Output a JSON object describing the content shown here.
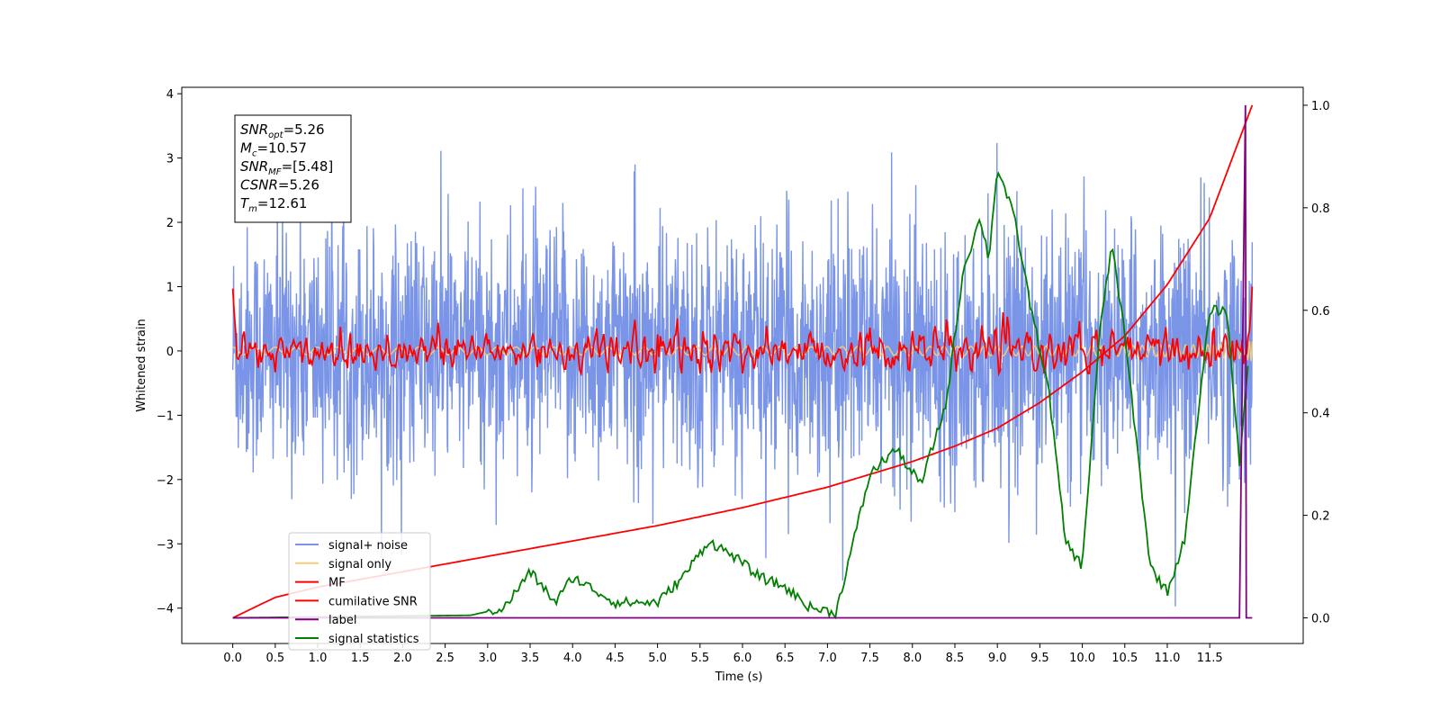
{
  "chart_data": {
    "type": "line",
    "xlabel": "Time (s)",
    "ylabel": "Whitened strain",
    "xlim": [
      -0.6,
      12.6
    ],
    "ylim": [
      -4.55,
      4.1
    ],
    "y2lim": [
      -0.05,
      1.035
    ],
    "x_ticks": [
      "0.0",
      "0.5",
      "1.0",
      "1.5",
      "2.0",
      "2.5",
      "3.0",
      "3.5",
      "4.0",
      "4.5",
      "5.0",
      "5.5",
      "6.0",
      "6.5",
      "7.0",
      "7.5",
      "8.0",
      "8.5",
      "9.0",
      "9.5",
      "10.0",
      "10.5",
      "11.0",
      "11.5"
    ],
    "y_ticks": [
      "4",
      "3",
      "2",
      "1",
      "0",
      "−1",
      "−2",
      "−3",
      "−4"
    ],
    "y2_ticks": [
      "1.0",
      "0.8",
      "0.6",
      "0.4",
      "0.2",
      "0.0"
    ],
    "grid": false,
    "legend_position": "lower-left",
    "annotation": {
      "lines": [
        {
          "base": "SNR",
          "sub": "opt",
          "rest": "=5.26"
        },
        {
          "base": "M",
          "sub": "c",
          "rest": "=10.57"
        },
        {
          "base": "SNR",
          "sub": "MF",
          "rest": "=[5.48]"
        },
        {
          "base": "CSNR",
          "sub": "",
          "rest": "=5.26"
        },
        {
          "base": "T",
          "sub": "m",
          "rest": "=12.61"
        }
      ]
    },
    "series": [
      {
        "name": "signal+ noise",
        "color": "#7a95e8",
        "axis": "left",
        "noise_std": 0.95,
        "t_range": [
          0,
          12.0
        ]
      },
      {
        "name": "signal only",
        "color": "#f5cc78",
        "axis": "left",
        "t_range": [
          0,
          12.0
        ],
        "amplitude_end": 0.25
      },
      {
        "name": "MF",
        "color": "#ff0000",
        "axis": "left",
        "t_range": [
          0,
          12.0
        ],
        "x": [
          0,
          0.05,
          12.0
        ],
        "y": [
          0.97,
          -0.05,
          1.0
        ]
      },
      {
        "name": "cumilative SNR",
        "color": "#ff0000",
        "axis": "right",
        "x": [
          0,
          0.5,
          1,
          2,
          3,
          4,
          5,
          6,
          7,
          8,
          8.5,
          9,
          9.5,
          10,
          10.5,
          11,
          11.5,
          12.0
        ],
        "y": [
          0,
          0.04,
          0.06,
          0.09,
          0.12,
          0.15,
          0.18,
          0.215,
          0.255,
          0.305,
          0.335,
          0.37,
          0.42,
          0.48,
          0.55,
          0.65,
          0.78,
          1.0
        ]
      },
      {
        "name": "label",
        "color": "#800080",
        "axis": "right",
        "x": [
          0,
          11.85,
          11.92,
          11.93,
          12.0
        ],
        "y": [
          0,
          0,
          1.0,
          0,
          0
        ]
      },
      {
        "name": "signal statistics",
        "color": "#008000",
        "axis": "right",
        "x": [
          0,
          2.8,
          3.2,
          3.5,
          3.8,
          4.0,
          4.2,
          4.5,
          5.0,
          5.3,
          5.6,
          5.9,
          6.2,
          6.5,
          6.8,
          7.1,
          7.5,
          7.8,
          8.1,
          8.4,
          8.6,
          8.8,
          8.9,
          9.0,
          9.2,
          9.4,
          9.6,
          9.8,
          10.0,
          10.2,
          10.35,
          10.5,
          10.8,
          11.0,
          11.2,
          11.5,
          11.7,
          11.85,
          11.95
        ],
        "y": [
          0,
          0.005,
          0.02,
          0.09,
          0.03,
          0.08,
          0.06,
          0.03,
          0.03,
          0.08,
          0.15,
          0.12,
          0.08,
          0.06,
          0.02,
          0.01,
          0.28,
          0.33,
          0.26,
          0.42,
          0.68,
          0.78,
          0.7,
          0.88,
          0.78,
          0.6,
          0.45,
          0.15,
          0.1,
          0.55,
          0.73,
          0.55,
          0.1,
          0.05,
          0.15,
          0.6,
          0.6,
          0.3,
          0.5
        ]
      }
    ]
  }
}
